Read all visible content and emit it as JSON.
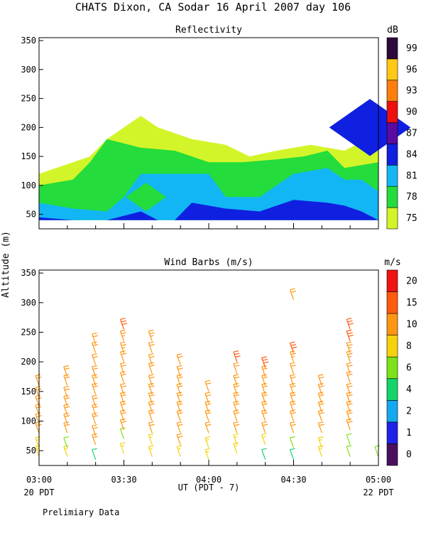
{
  "title": "CHATS Dixon, CA  Sodar  16 April 2007  day 106",
  "ylabel": "Altitude (m)",
  "xlabel": "UT  (PDT - 7)",
  "x_ticks": [
    "03:00",
    "03:30",
    "04:00",
    "04:30",
    "05:00"
  ],
  "x_start_note": "20 PDT",
  "x_end_note": "22 PDT",
  "footer_note": "Prelimiary Data",
  "chart_data": [
    {
      "type": "heatmap",
      "title": "Reflectivity",
      "units": "dB",
      "x_range": [
        "03:00",
        "05:00"
      ],
      "ylim": [
        25,
        355
      ],
      "y_ticks": [
        50,
        100,
        150,
        200,
        250,
        300,
        350
      ],
      "colorbar": {
        "labels": [
          75,
          78,
          81,
          84,
          87,
          90,
          93,
          96,
          99
        ],
        "colors": [
          "#d2f52a",
          "#24dc3c",
          "#12b6f4",
          "#1020e0",
          "#5a0aa0",
          "#ee1010",
          "#ff7e0c",
          "#ffc814",
          "#2c0a3c"
        ]
      },
      "contours": [
        {
          "level": 75,
          "top_profile": [
            [
              0,
              120
            ],
            [
              10,
              140
            ],
            [
              15,
              150
            ],
            [
              20,
              180
            ],
            [
              25,
              200
            ],
            [
              30,
              220
            ],
            [
              35,
              200
            ],
            [
              45,
              180
            ],
            [
              55,
              170
            ],
            [
              62,
              150
            ],
            [
              70,
              160
            ],
            [
              80,
              170
            ],
            [
              90,
              160
            ],
            [
              100,
              190
            ]
          ]
        },
        {
          "level": 78,
          "top_profile": [
            [
              0,
              100
            ],
            [
              10,
              110
            ],
            [
              15,
              140
            ],
            [
              20,
              180
            ],
            [
              30,
              165
            ],
            [
              40,
              160
            ],
            [
              50,
              140
            ],
            [
              60,
              140
            ],
            [
              70,
              145
            ],
            [
              78,
              150
            ],
            [
              85,
              160
            ],
            [
              90,
              130
            ],
            [
              100,
              140
            ]
          ]
        },
        {
          "level": 81,
          "top_profile": [
            [
              0,
              70
            ],
            [
              10,
              60
            ],
            [
              20,
              55
            ],
            [
              25,
              80
            ],
            [
              30,
              120
            ],
            [
              40,
              120
            ],
            [
              50,
              120
            ],
            [
              55,
              80
            ],
            [
              65,
              80
            ],
            [
              75,
              120
            ],
            [
              85,
              130
            ],
            [
              90,
              110
            ],
            [
              95,
              110
            ],
            [
              100,
              90
            ]
          ]
        },
        {
          "level": 84,
          "top_profile": [
            [
              0,
              45
            ],
            [
              10,
              40
            ],
            [
              20,
              40
            ],
            [
              30,
              55
            ],
            [
              35,
              40
            ],
            [
              40,
              40
            ],
            [
              45,
              70
            ],
            [
              55,
              60
            ],
            [
              65,
              55
            ],
            [
              75,
              75
            ],
            [
              85,
              70
            ],
            [
              90,
              65
            ],
            [
              95,
              55
            ],
            [
              100,
              40
            ]
          ]
        }
      ],
      "features": [
        {
          "level": 78,
          "x_min": 30.5,
          "x_max": 32.5,
          "y_center": 80
        },
        {
          "level": 84,
          "x_min": 95.5,
          "x_max": 99.5,
          "y_center": 200
        }
      ]
    },
    {
      "type": "scatter",
      "title": "Wind Barbs (m/s)",
      "units": "m/s",
      "x_range": [
        "03:00",
        "05:00"
      ],
      "ylim": [
        25,
        355
      ],
      "y_ticks": [
        50,
        100,
        150,
        200,
        250,
        300,
        350
      ],
      "colorbar": {
        "labels": [
          0,
          1,
          2,
          4,
          6,
          8,
          10,
          15,
          20
        ],
        "colors": [
          "#4b0f5e",
          "#2022e8",
          "#14a8f0",
          "#14d56a",
          "#7ee21a",
          "#f5d20c",
          "#ff9612",
          "#ff5a0e",
          "#ee1414"
        ]
      },
      "profile_times": [
        "03:00",
        "03:10",
        "03:20",
        "03:30",
        "03:40",
        "03:50",
        "04:00",
        "04:10",
        "04:20",
        "04:30",
        "04:40",
        "04:50",
        "05:00"
      ],
      "barbs": [
        {
          "t": "03:00",
          "levels": [
            [
              40,
              8
            ],
            [
              55,
              8
            ],
            [
              80,
              10
            ],
            [
              95,
              10
            ],
            [
              110,
              10
            ],
            [
              125,
              10
            ],
            [
              140,
              10
            ],
            [
              160,
              12
            ]
          ]
        },
        {
          "t": "03:10",
          "levels": [
            [
              40,
              8
            ],
            [
              55,
              6
            ],
            [
              80,
              10
            ],
            [
              95,
              10
            ],
            [
              110,
              10
            ],
            [
              125,
              10
            ],
            [
              140,
              10
            ],
            [
              160,
              10
            ],
            [
              175,
              10
            ]
          ]
        },
        {
          "t": "03:20",
          "levels": [
            [
              35,
              5
            ],
            [
              60,
              10
            ],
            [
              75,
              10
            ],
            [
              95,
              10
            ],
            [
              110,
              10
            ],
            [
              125,
              10
            ],
            [
              145,
              10
            ],
            [
              160,
              10
            ],
            [
              175,
              10
            ],
            [
              195,
              10
            ],
            [
              215,
              12
            ],
            [
              230,
              12
            ]
          ]
        },
        {
          "t": "03:30",
          "levels": [
            [
              45,
              8
            ],
            [
              70,
              6
            ],
            [
              85,
              10
            ],
            [
              100,
              10
            ],
            [
              115,
              10
            ],
            [
              130,
              10
            ],
            [
              145,
              10
            ],
            [
              165,
              10
            ],
            [
              180,
              12
            ],
            [
              200,
              12
            ],
            [
              215,
              13
            ],
            [
              235,
              14
            ],
            [
              255,
              15
            ]
          ]
        },
        {
          "t": "03:40",
          "levels": [
            [
              40,
              8
            ],
            [
              60,
              8
            ],
            [
              80,
              10
            ],
            [
              100,
              10
            ],
            [
              115,
              10
            ],
            [
              130,
              10
            ],
            [
              145,
              10
            ],
            [
              160,
              10
            ],
            [
              180,
              12
            ],
            [
              195,
              12
            ],
            [
              215,
              12
            ],
            [
              235,
              13
            ]
          ]
        },
        {
          "t": "03:50",
          "levels": [
            [
              40,
              8
            ],
            [
              60,
              10
            ],
            [
              80,
              10
            ],
            [
              100,
              10
            ],
            [
              115,
              10
            ],
            [
              130,
              10
            ],
            [
              145,
              10
            ],
            [
              160,
              10
            ],
            [
              175,
              10
            ],
            [
              195,
              12
            ]
          ]
        },
        {
          "t": "04:00",
          "levels": [
            [
              35,
              8
            ],
            [
              55,
              8
            ],
            [
              80,
              10
            ],
            [
              100,
              10
            ],
            [
              115,
              10
            ],
            [
              130,
              10
            ],
            [
              150,
              10
            ]
          ]
        },
        {
          "t": "04:10",
          "levels": [
            [
              45,
              8
            ],
            [
              60,
              8
            ],
            [
              80,
              10
            ],
            [
              100,
              10
            ],
            [
              115,
              10
            ],
            [
              130,
              10
            ],
            [
              145,
              10
            ],
            [
              160,
              10
            ],
            [
              180,
              12
            ],
            [
              200,
              15
            ]
          ]
        },
        {
          "t": "04:20",
          "levels": [
            [
              35,
              5
            ],
            [
              60,
              8
            ],
            [
              80,
              10
            ],
            [
              100,
              10
            ],
            [
              115,
              10
            ],
            [
              130,
              10
            ],
            [
              145,
              10
            ],
            [
              160,
              10
            ],
            [
              175,
              12
            ],
            [
              190,
              15
            ]
          ]
        },
        {
          "t": "04:30",
          "levels": [
            [
              35,
              5
            ],
            [
              55,
              6
            ],
            [
              80,
              10
            ],
            [
              100,
              10
            ],
            [
              115,
              10
            ],
            [
              130,
              10
            ],
            [
              145,
              10
            ],
            [
              160,
              10
            ],
            [
              180,
              12
            ],
            [
              200,
              14
            ],
            [
              215,
              15
            ],
            [
              305,
              10
            ]
          ]
        },
        {
          "t": "04:40",
          "levels": [
            [
              40,
              8
            ],
            [
              55,
              8
            ],
            [
              80,
              10
            ],
            [
              100,
              10
            ],
            [
              115,
              10
            ],
            [
              130,
              10
            ],
            [
              145,
              10
            ],
            [
              160,
              10
            ]
          ]
        },
        {
          "t": "04:50",
          "levels": [
            [
              40,
              6
            ],
            [
              60,
              6
            ],
            [
              85,
              10
            ],
            [
              100,
              10
            ],
            [
              115,
              10
            ],
            [
              130,
              10
            ],
            [
              145,
              10
            ],
            [
              165,
              10
            ],
            [
              180,
              12
            ],
            [
              200,
              13
            ],
            [
              215,
              14
            ],
            [
              235,
              15
            ],
            [
              255,
              15
            ]
          ]
        },
        {
          "t": "05:00",
          "levels": [
            [
              40,
              6
            ]
          ]
        }
      ]
    }
  ]
}
